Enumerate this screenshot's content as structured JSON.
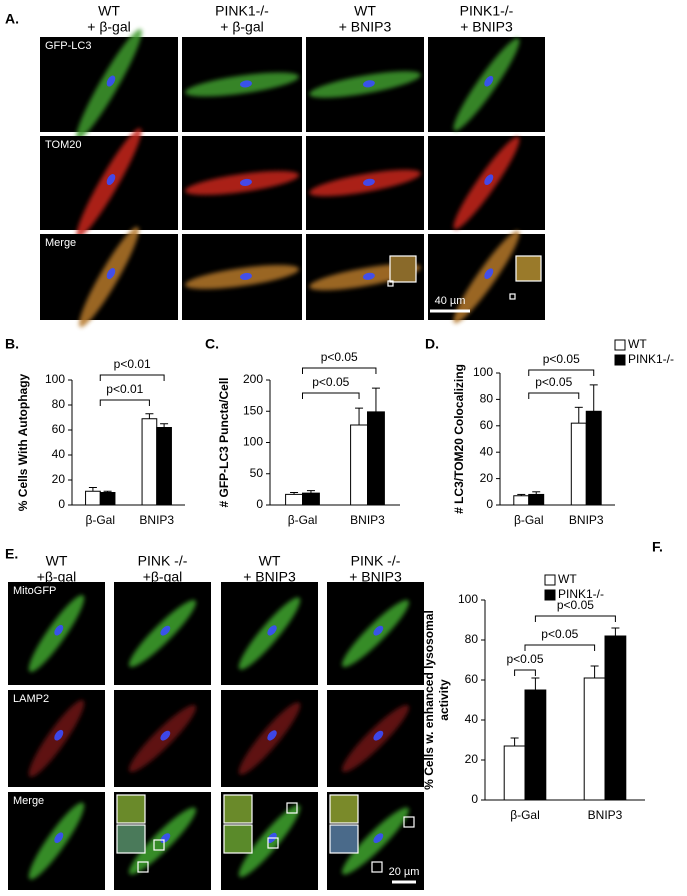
{
  "panel_a": {
    "label": "A.",
    "columns": [
      [
        "WT",
        "+ β-gal"
      ],
      [
        "PINK1-/-",
        "+ β-gal"
      ],
      [
        "WT",
        "+ BNIP3"
      ],
      [
        "PINK1-/-",
        "+ BNIP3"
      ]
    ],
    "rows": [
      "GFP-LC3",
      "TOM20",
      "Merge"
    ],
    "scale_bar": "40 µm"
  },
  "panel_e": {
    "label": "E.",
    "columns": [
      [
        "WT",
        "+β-gal"
      ],
      [
        "PINK -/-",
        "+β-gal"
      ],
      [
        "WT",
        "+ BNIP3"
      ],
      [
        "PINK -/-",
        "+ BNIP3"
      ]
    ],
    "rows": [
      "MitoGFP",
      "LAMP2",
      "Merge"
    ],
    "scale_bar": "20 µm"
  },
  "chart_data": [
    {
      "type": "bar",
      "label": "B.",
      "ylabel": [
        "% Cells With Autophagy"
      ],
      "categories": [
        "β-Gal",
        "BNIP3"
      ],
      "series": [
        {
          "color": "#ffffff",
          "values": [
            11,
            69
          ],
          "errors": [
            3,
            4
          ]
        },
        {
          "color": "#000000",
          "values": [
            10,
            62
          ],
          "errors": [
            1,
            3
          ]
        }
      ],
      "ylim": [
        0,
        100
      ],
      "yticks": [
        0,
        20,
        40,
        60,
        80,
        100
      ],
      "annotations": [
        "p<0.01",
        "p<0.01"
      ]
    },
    {
      "type": "bar",
      "label": "C.",
      "ylabel": [
        "# GFP-LC3 Puncta/Cell"
      ],
      "categories": [
        "β-Gal",
        "BNIP3"
      ],
      "series": [
        {
          "color": "#ffffff",
          "values": [
            17,
            128
          ],
          "errors": [
            3,
            27
          ]
        },
        {
          "color": "#000000",
          "values": [
            19,
            149
          ],
          "errors": [
            4,
            38
          ]
        }
      ],
      "ylim": [
        0,
        200
      ],
      "yticks": [
        0,
        50,
        100,
        150,
        200
      ],
      "annotations": [
        "p<0.05",
        "p<0.05"
      ]
    },
    {
      "type": "bar",
      "label": "D.",
      "ylabel": [
        "# LC3/TOM20 Colocalizing"
      ],
      "categories": [
        "β-Gal",
        "BNIP3"
      ],
      "series": [
        {
          "name": "WT",
          "color": "#ffffff",
          "values": [
            7,
            62
          ],
          "errors": [
            1,
            12
          ]
        },
        {
          "name": "PINK1-/-",
          "color": "#000000",
          "values": [
            8,
            71
          ],
          "errors": [
            2,
            20
          ]
        }
      ],
      "ylim": [
        0,
        100
      ],
      "yticks": [
        0,
        20,
        40,
        60,
        80,
        100
      ],
      "annotations": [
        "p<0.05",
        "p<0.05"
      ],
      "legend": true
    },
    {
      "type": "bar",
      "label": "F.",
      "ylabel": [
        "% Cells w. enhanced lysosomal",
        "activity"
      ],
      "categories": [
        "β-Gal",
        "BNIP3"
      ],
      "series": [
        {
          "name": "WT",
          "color": "#ffffff",
          "values": [
            27,
            61
          ],
          "errors": [
            4,
            6
          ]
        },
        {
          "name": "PINK1-/-",
          "color": "#000000",
          "values": [
            55,
            82
          ],
          "errors": [
            6,
            4
          ]
        }
      ],
      "ylim": [
        0,
        100
      ],
      "yticks": [
        0,
        20,
        40,
        60,
        80,
        100
      ],
      "annotations": [
        "p<0.05",
        "p<0.05",
        "p<0.05"
      ],
      "legend": true
    }
  ]
}
